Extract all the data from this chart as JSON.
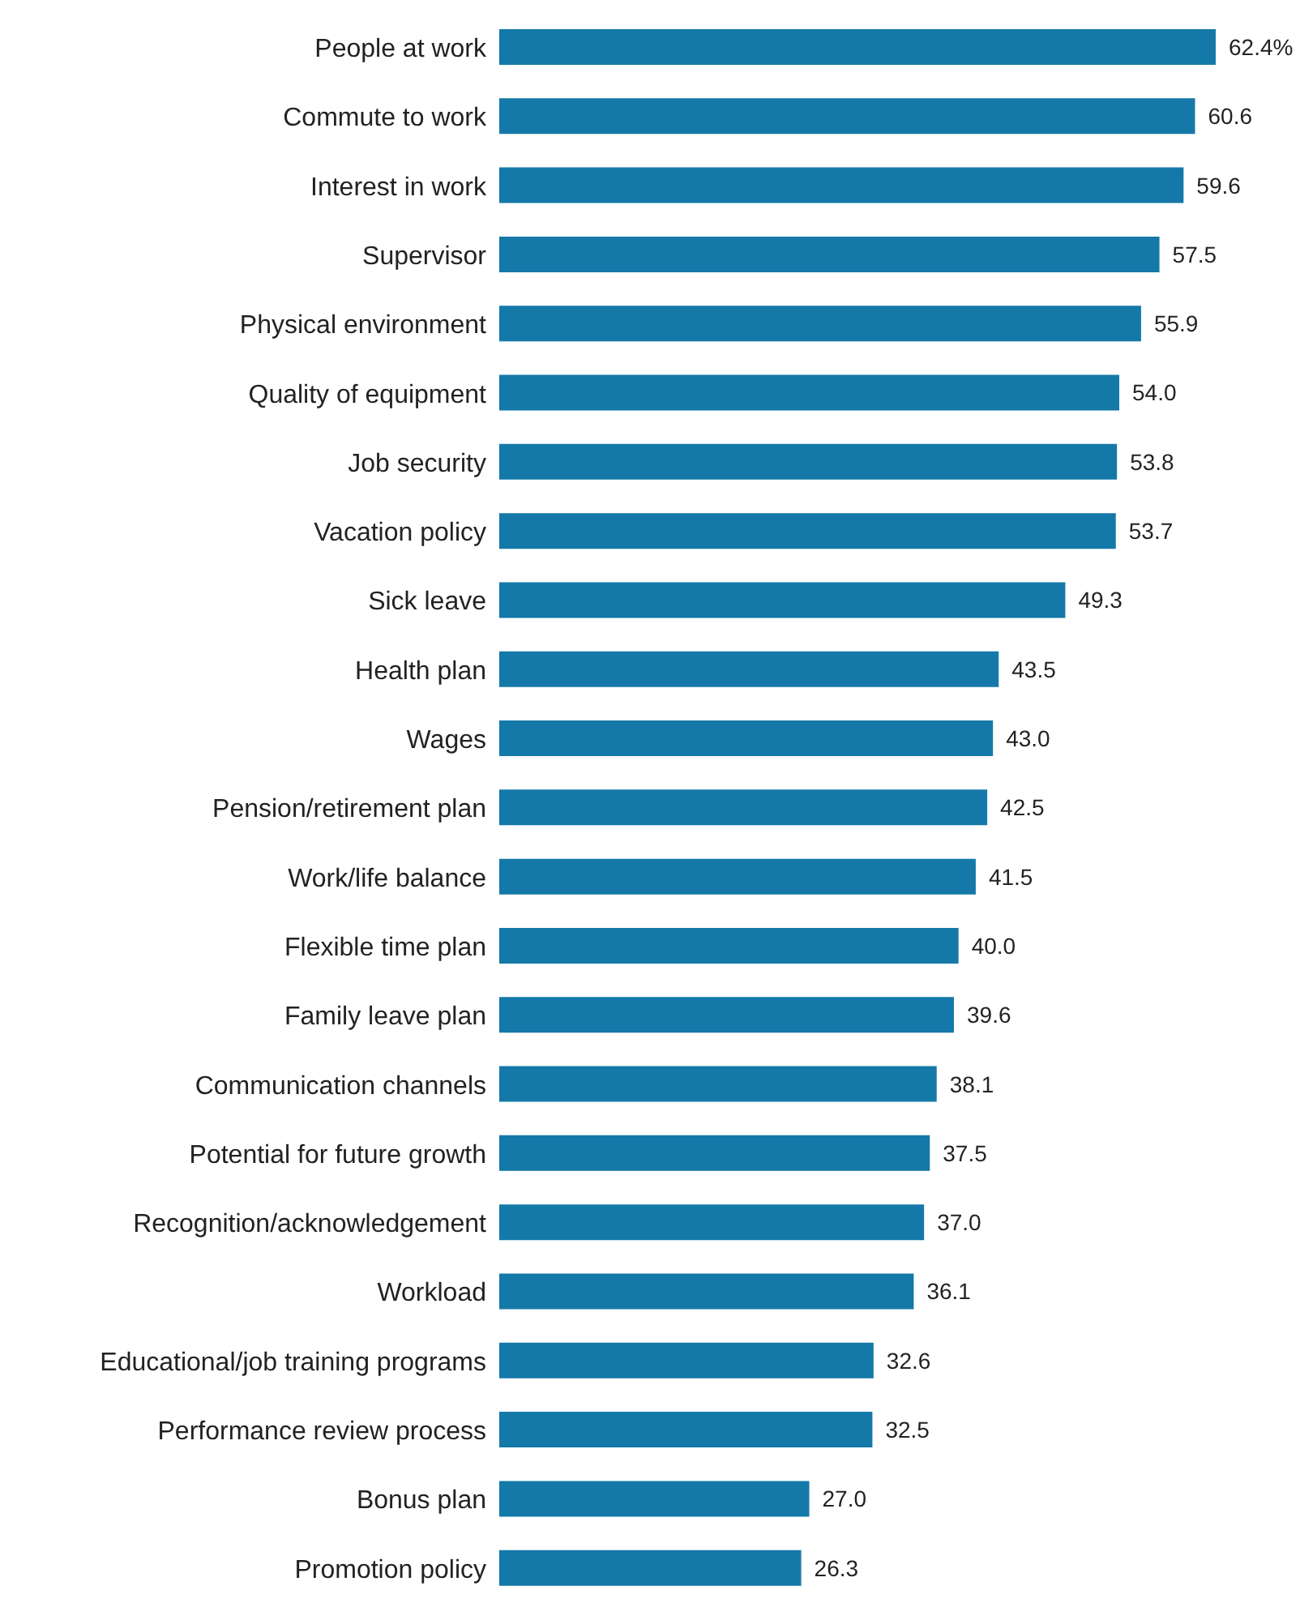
{
  "chart_data": {
    "type": "bar",
    "orientation": "horizontal",
    "categories": [
      "People at work",
      "Commute to work",
      "Interest in work",
      "Supervisor",
      "Physical environment",
      "Quality of equipment",
      "Job security",
      "Vacation policy",
      "Sick leave",
      "Health plan",
      "Wages",
      "Pension/retirement plan",
      "Work/life balance",
      "Flexible time plan",
      "Family leave plan",
      "Communication channels",
      "Potential for future growth",
      "Recognition/acknowledgement",
      "Workload",
      "Educational/job training programs",
      "Performance review process",
      "Bonus plan",
      "Promotion policy"
    ],
    "values": [
      62.4,
      60.6,
      59.6,
      57.5,
      55.9,
      54.0,
      53.8,
      53.7,
      49.3,
      43.5,
      43.0,
      42.5,
      41.5,
      40.0,
      39.6,
      38.1,
      37.5,
      37.0,
      36.1,
      32.6,
      32.5,
      27.0,
      26.3
    ],
    "value_labels": [
      "62.4%",
      "60.6",
      "59.6",
      "57.5",
      "55.9",
      "54.0",
      "53.8",
      "53.7",
      "49.3",
      "43.5",
      "43.0",
      "42.5",
      "41.5",
      "40.0",
      "39.6",
      "38.1",
      "37.5",
      "37.0",
      "36.1",
      "32.6",
      "32.5",
      "27.0",
      "26.3"
    ],
    "color": "#1479a8",
    "tick_labels": "y",
    "grid": false,
    "legend": false
  }
}
